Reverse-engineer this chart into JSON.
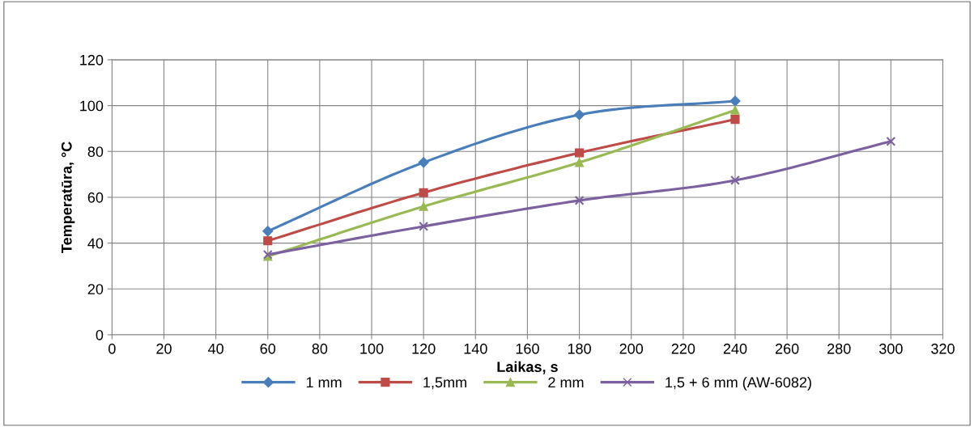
{
  "chart_data": {
    "type": "line",
    "xlabel": "Laikas, s",
    "ylabel": "Temperatūra, °C",
    "x": [
      60,
      120,
      180,
      240
    ],
    "series": [
      {
        "name": "1 mm",
        "color": "#4a7ebb",
        "marker": "diamond",
        "values": [
          45.2,
          75.2,
          96,
          102
        ]
      },
      {
        "name": "1,5mm",
        "color": "#be4b48",
        "marker": "square",
        "values": [
          41,
          62,
          79.4,
          94
        ]
      },
      {
        "name": "2 mm",
        "color": "#98b954",
        "marker": "triangle",
        "values": [
          34.2,
          56,
          75.2,
          98
        ]
      },
      {
        "name": "1,5 + 6 mm (AW-6082)",
        "color": "#7d60a0",
        "marker": "cross",
        "x": [
          60,
          120,
          180,
          240,
          300
        ],
        "values": [
          35,
          47.3,
          58.6,
          67.4,
          84.4
        ]
      }
    ],
    "xlim": [
      0,
      320
    ],
    "xticks": [
      0,
      20,
      40,
      60,
      80,
      100,
      120,
      140,
      160,
      180,
      200,
      220,
      240,
      260,
      280,
      300,
      320
    ],
    "ylim": [
      0,
      120
    ],
    "yticks": [
      0,
      20,
      40,
      60,
      80,
      100,
      120
    ],
    "grid": true,
    "legend": "bottom",
    "line_style": "solid"
  }
}
